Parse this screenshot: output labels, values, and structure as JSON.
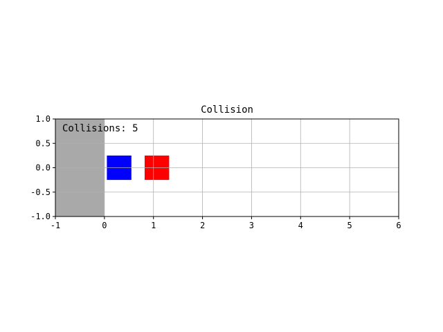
{
  "chart_data": {
    "type": "scatter",
    "title": "Collision",
    "xlabel": "",
    "ylabel": "",
    "xlim": [
      -1,
      6
    ],
    "ylim": [
      -1,
      1
    ],
    "xticks": [
      -1,
      0,
      1,
      2,
      3,
      4,
      5,
      6
    ],
    "yticks": [
      -1.0,
      -0.5,
      0.0,
      0.5,
      1.0
    ],
    "xtick_labels": [
      "-1",
      "0",
      "1",
      "2",
      "3",
      "4",
      "5",
      "6"
    ],
    "ytick_labels": [
      "-1.0",
      "-0.5",
      "0.0",
      "0.5",
      "1.0"
    ],
    "grid": true,
    "wall": {
      "x_range": [
        -1,
        0
      ],
      "y_range": [
        -1,
        1
      ],
      "color": "#a9a9a9"
    },
    "blocks": [
      {
        "x_range": [
          0.05,
          0.55
        ],
        "y_range": [
          -0.25,
          0.25
        ],
        "color": "#0000ff"
      },
      {
        "x_range": [
          0.82,
          1.32
        ],
        "y_range": [
          -0.25,
          0.25
        ],
        "color": "#ff0000"
      }
    ],
    "annotation": {
      "text": "Collisions: 5"
    }
  }
}
